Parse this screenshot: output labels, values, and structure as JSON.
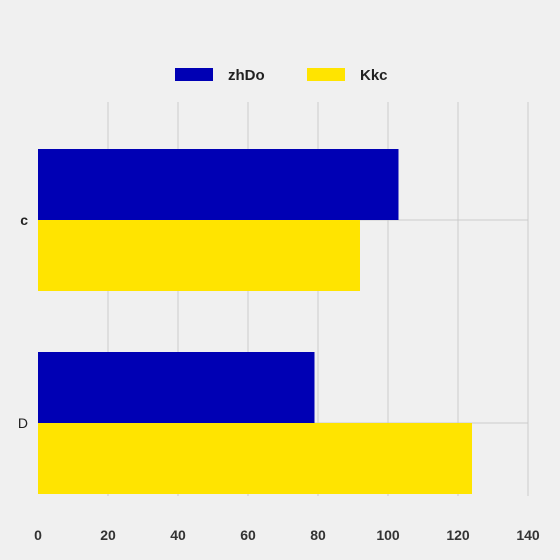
{
  "chart_data": {
    "type": "bar",
    "orientation": "horizontal",
    "categories": [
      "c",
      "D"
    ],
    "series": [
      {
        "name": "zhDo",
        "color": "#0000b4",
        "values": [
          103,
          79
        ]
      },
      {
        "name": "Kkc",
        "color": "#ffe400",
        "values": [
          92,
          124
        ]
      }
    ],
    "xlim": [
      0,
      140
    ],
    "xticks": [
      0,
      20,
      40,
      60,
      80,
      100,
      120,
      140
    ],
    "grid": true,
    "legend_position": "top-center",
    "colors": {
      "background": "#f0f0f0",
      "grid": "#cbcbcb"
    }
  }
}
